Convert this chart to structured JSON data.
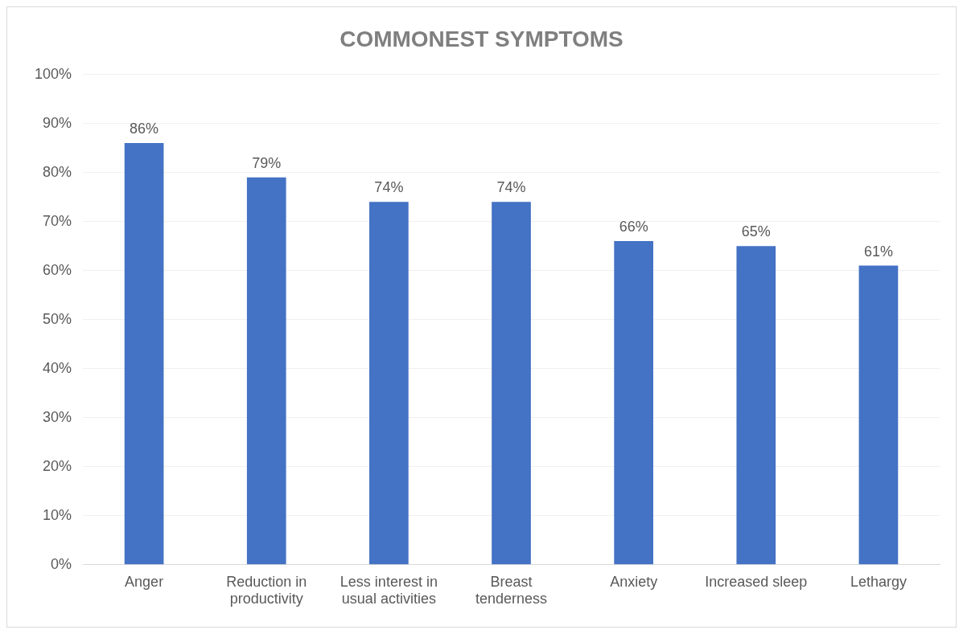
{
  "chart_data": {
    "type": "bar",
    "title": "COMMONEST SYMPTOMS",
    "categories": [
      "Anger",
      "Reduction in productivity",
      "Less interest in usual activities",
      "Breast tenderness",
      "Anxiety",
      "Increased sleep",
      "Lethargy"
    ],
    "values": [
      86,
      79,
      74,
      74,
      66,
      65,
      61
    ],
    "value_labels": [
      "86%",
      "79%",
      "74%",
      "74%",
      "66%",
      "65%",
      "61%"
    ],
    "color": "#4472c4",
    "ylim": [
      0,
      100
    ],
    "yticks": [
      {
        "value": 0,
        "label": "0%"
      },
      {
        "value": 10,
        "label": "10%"
      },
      {
        "value": 20,
        "label": "20%"
      },
      {
        "value": 30,
        "label": "30%"
      },
      {
        "value": 40,
        "label": "40%"
      },
      {
        "value": 50,
        "label": "50%"
      },
      {
        "value": 60,
        "label": "60%"
      },
      {
        "value": 70,
        "label": "70%"
      },
      {
        "value": 80,
        "label": "80%"
      },
      {
        "value": 90,
        "label": "90%"
      },
      {
        "value": 100,
        "label": "100%"
      }
    ],
    "grid": "y",
    "legend": false
  }
}
